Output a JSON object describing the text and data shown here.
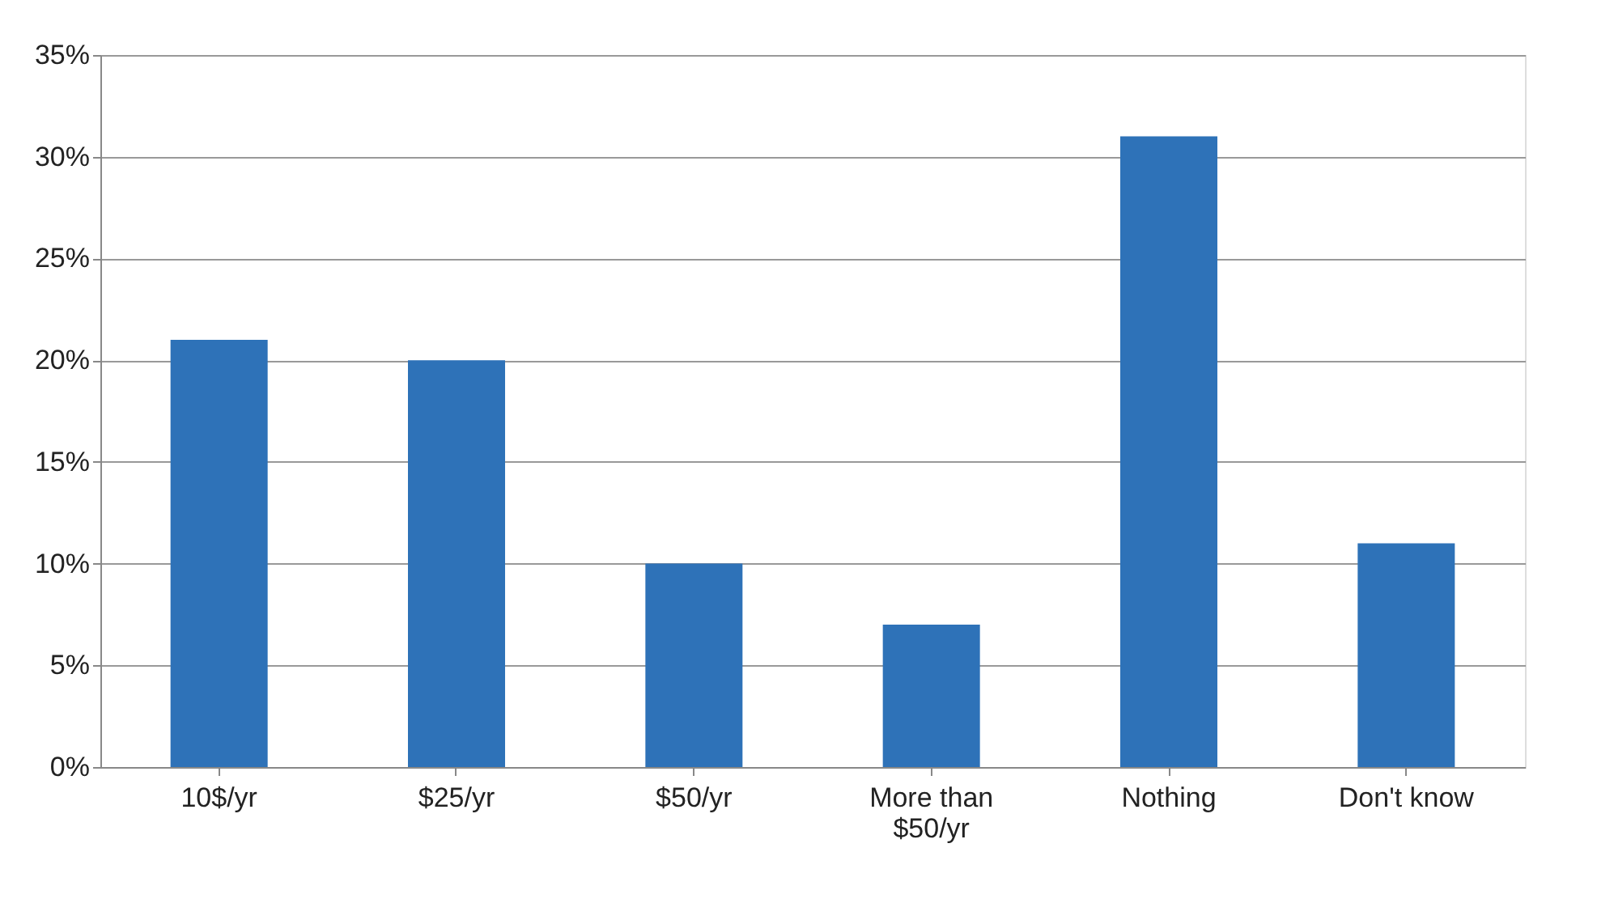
{
  "chart_data": {
    "type": "bar",
    "categories": [
      "10$/yr",
      "$25/yr",
      "$50/yr",
      "More than $50/yr",
      "Nothing",
      "Don't know"
    ],
    "values": [
      21,
      20,
      10,
      7,
      31,
      11
    ],
    "color": "#2e72b8",
    "ylim": [
      0,
      35
    ],
    "yticks": [
      {
        "value": 0,
        "label": "0%"
      },
      {
        "value": 5,
        "label": "5%"
      },
      {
        "value": 10,
        "label": "10%"
      },
      {
        "value": 15,
        "label": "15%"
      },
      {
        "value": 20,
        "label": "20%"
      },
      {
        "value": 25,
        "label": "25%"
      },
      {
        "value": 30,
        "label": "30%"
      },
      {
        "value": 35,
        "label": "35%"
      }
    ],
    "grid": "y"
  }
}
